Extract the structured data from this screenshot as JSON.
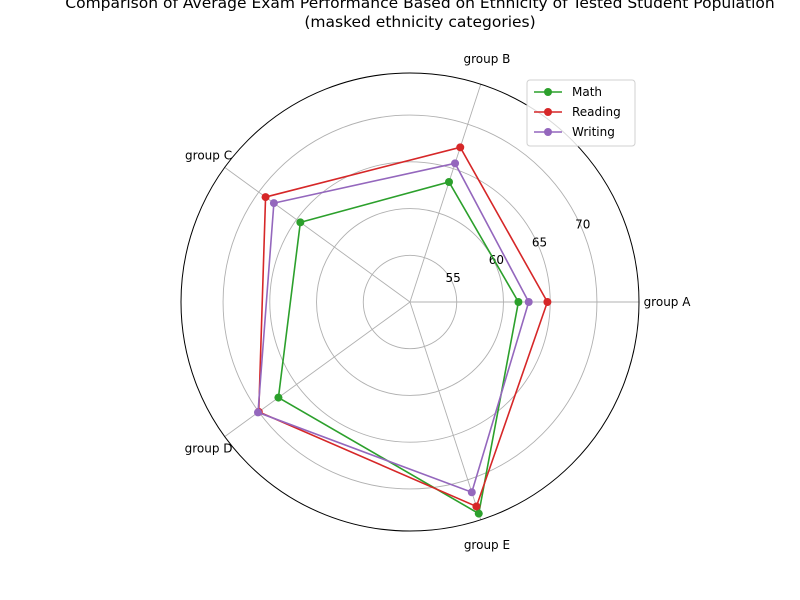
{
  "chart_data": {
    "type": "radar",
    "title": [
      "Comparison of Average Exam Performance Based on Ethnicity of Tested Student Population",
      "(masked ethnicity categories)"
    ],
    "categories": [
      "group A",
      "group B",
      "group C",
      "group D",
      "group E"
    ],
    "series": [
      {
        "name": "Math",
        "color": "#2ca02c",
        "values": [
          61.6,
          63.5,
          64.5,
          67.4,
          73.8
        ]
      },
      {
        "name": "Reading",
        "color": "#d62728",
        "values": [
          64.7,
          67.4,
          69.1,
          70.0,
          73.0
        ]
      },
      {
        "name": "Writing",
        "color": "#9467bd",
        "values": [
          62.7,
          65.6,
          68.0,
          70.1,
          71.4
        ]
      }
    ],
    "radial_ticks": [
      55,
      60,
      65,
      70
    ],
    "rlim": [
      50,
      74.5
    ],
    "grid": true,
    "legend": "top-right"
  }
}
